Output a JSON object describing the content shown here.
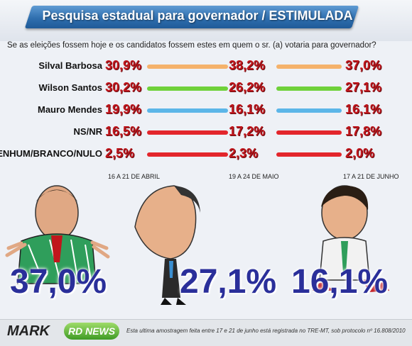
{
  "header": {
    "title": "Pesquisa estadual para governador / ESTIMULADA"
  },
  "question": "Se as eleições fossem hoje e os candidatos fossem estes em quem o sr. (a) votaria para governador?",
  "chart_data": {
    "type": "line",
    "title": "Pesquisa estadual para governador / ESTIMULADA",
    "periods": [
      "16 A 21 DE ABRIL",
      "19 A 24 DE MAIO",
      "17 A 21 DE JUNHO"
    ],
    "series": [
      {
        "name": "Silval Barbosa",
        "values": [
          30.9,
          38.2,
          37.0
        ],
        "labels": [
          "30,9%",
          "38,2%",
          "37,0%"
        ],
        "color": "#f5b26b"
      },
      {
        "name": "Wilson Santos",
        "values": [
          30.2,
          26.2,
          27.1
        ],
        "labels": [
          "30,2%",
          "26,2%",
          "27,1%"
        ],
        "color": "#6fd13a"
      },
      {
        "name": "Mauro Mendes",
        "values": [
          19.9,
          16.1,
          16.1
        ],
        "labels": [
          "19,9%",
          "16,1%",
          "16,1%"
        ],
        "color": "#5cb6e8"
      },
      {
        "name": "NS/NR",
        "values": [
          16.5,
          17.2,
          17.8
        ],
        "labels": [
          "16,5%",
          "17,2%",
          "17,8%"
        ],
        "color": "#e3262c"
      },
      {
        "name": "NENHUM/BRANCO/NULO",
        "values": [
          2.5,
          2.3,
          2.0
        ],
        "labels": [
          "2,5%",
          "2,3%",
          "2,0%"
        ],
        "color": "#e3262c"
      }
    ]
  },
  "highlights": [
    "37,0%",
    "27,1%",
    "16,1%"
  ],
  "footer": {
    "logo_mark": "MARK",
    "logo_rd": "RD NEWS",
    "note": "Esta ultima amostragem feita entre 17 e 21 de junho está registrada no TRE-MT, sob protocolo  nº 16.808/2010"
  }
}
